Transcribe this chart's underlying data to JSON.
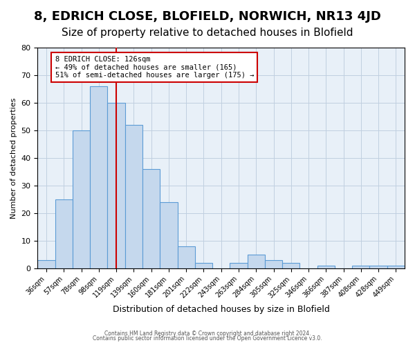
{
  "title": "8, EDRICH CLOSE, BLOFIELD, NORWICH, NR13 4JD",
  "subtitle": "Size of property relative to detached houses in Blofield",
  "xlabel": "Distribution of detached houses by size in Blofield",
  "ylabel": "Number of detached properties",
  "bar_labels": [
    "36sqm",
    "57sqm",
    "78sqm",
    "98sqm",
    "119sqm",
    "139sqm",
    "160sqm",
    "181sqm",
    "201sqm",
    "222sqm",
    "243sqm",
    "263sqm",
    "284sqm",
    "305sqm",
    "325sqm",
    "346sqm",
    "366sqm",
    "387sqm",
    "408sqm",
    "428sqm",
    "449sqm"
  ],
  "bar_values": [
    3,
    25,
    50,
    66,
    60,
    52,
    36,
    24,
    8,
    2,
    0,
    2,
    5,
    3,
    2,
    0,
    1,
    0,
    1,
    1,
    1
  ],
  "bar_color": "#c5d8ed",
  "bar_edge_color": "#5b9bd5",
  "vline_x": 4,
  "vline_color": "#cc0000",
  "annotation_text": "8 EDRICH CLOSE: 126sqm\n← 49% of detached houses are smaller (165)\n51% of semi-detached houses are larger (175) →",
  "annotation_box_color": "#ffffff",
  "annotation_box_edge_color": "#cc0000",
  "ylim": [
    0,
    80
  ],
  "yticks": [
    0,
    10,
    20,
    30,
    40,
    50,
    60,
    70,
    80
  ],
  "grid_color": "#c0cfe0",
  "background_color": "#e8f0f8",
  "footer_line1": "Contains HM Land Registry data © Crown copyright and database right 2024.",
  "footer_line2": "Contains public sector information licensed under the Open Government Licence v3.0.",
  "title_fontsize": 13,
  "subtitle_fontsize": 11
}
